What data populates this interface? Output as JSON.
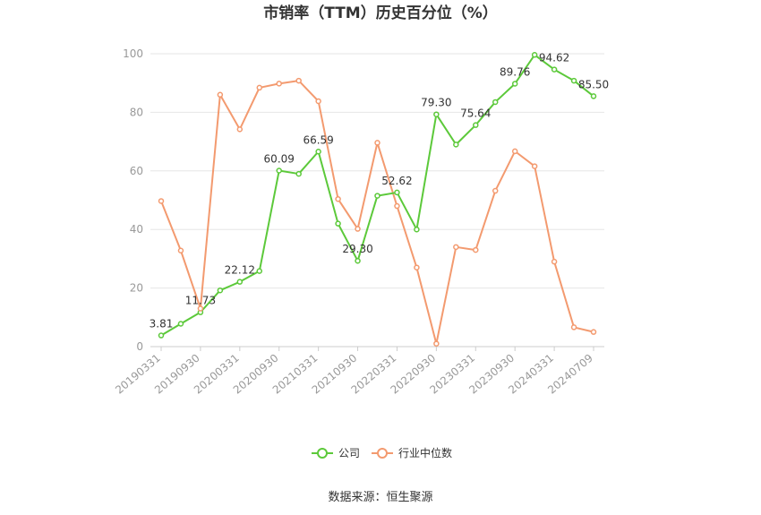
{
  "chart_data": {
    "type": "line",
    "title": "市销率（TTM）历史百分位（%）",
    "source": "数据来源：恒生聚源",
    "ylim": [
      0,
      100
    ],
    "yticks": [
      0,
      20,
      40,
      60,
      80,
      100
    ],
    "grid": true,
    "legend_position": "bottom",
    "x": [
      "20190331",
      "20190630",
      "20190930",
      "20191231",
      "20200331",
      "20200630",
      "20200930",
      "20201231",
      "20210331",
      "20210630",
      "20210930",
      "20211231",
      "20220331",
      "20220630",
      "20220930",
      "20221231",
      "20230331",
      "20230630",
      "20230930",
      "20231231",
      "20240331",
      "20240630",
      "20240709"
    ],
    "xtick_labels": [
      "20190331",
      "20190930",
      "20200331",
      "20200930",
      "20210331",
      "20210930",
      "20220331",
      "20220930",
      "20230331",
      "20230930",
      "20240331",
      "20240709"
    ],
    "series": [
      {
        "name": "公司",
        "color": "#5cc93a",
        "values": [
          3.81,
          7.8,
          11.73,
          19.2,
          22.12,
          25.8,
          60.09,
          59.0,
          66.59,
          42.0,
          29.3,
          51.5,
          52.62,
          40.0,
          79.3,
          69.0,
          75.64,
          83.5,
          89.76,
          99.6,
          94.62,
          90.8,
          85.5
        ],
        "labels": {
          "0": "3.81",
          "2": "11.73",
          "4": "22.12",
          "6": "60.09",
          "8": "66.59",
          "10": "29.30",
          "12": "52.62",
          "14": "79.30",
          "16": "75.64",
          "18": "89.76",
          "20": "94.62",
          "22": "85.50"
        }
      },
      {
        "name": "行业中位数",
        "color": "#f39a6f",
        "values": [
          49.7,
          32.8,
          13.0,
          86.0,
          74.2,
          88.4,
          89.8,
          90.8,
          83.8,
          50.4,
          40.2,
          69.6,
          48.0,
          27.0,
          1.0,
          34.0,
          33.0,
          53.2,
          66.7,
          61.6,
          29.0,
          6.6,
          5.0
        ]
      }
    ]
  }
}
